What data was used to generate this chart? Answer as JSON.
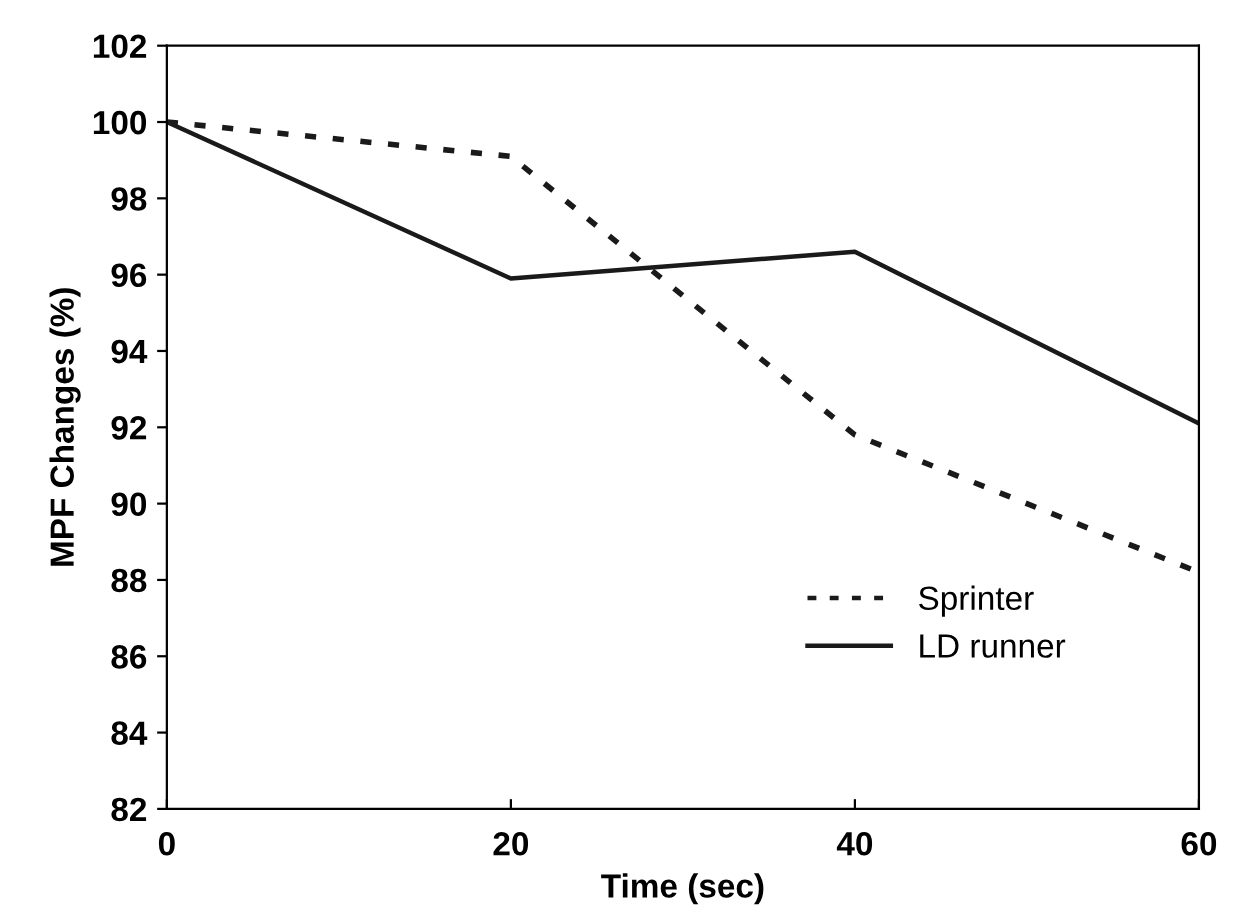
{
  "chart_data": {
    "type": "line",
    "xlabel": "Time (sec)",
    "ylabel": "MPF Changes (%)",
    "x": [
      0,
      20,
      40,
      60
    ],
    "series": [
      {
        "name": "Sprinter",
        "color": "#1a1a1a",
        "values": [
          100,
          99.1,
          91.8,
          88.2
        ],
        "line_style": "dotted"
      },
      {
        "name": "LD runner",
        "color": "#1a1a1a",
        "values": [
          100,
          95.9,
          96.6,
          92.1
        ],
        "line_style": "solid"
      }
    ],
    "xlim": [
      0,
      60
    ],
    "xticks": [
      0,
      20,
      40,
      60
    ],
    "ylim": [
      82,
      102
    ],
    "yticks": [
      82,
      84,
      86,
      88,
      90,
      92,
      94,
      96,
      98,
      100,
      102
    ],
    "grid": false,
    "legend": "bottom right",
    "marker": "none"
  }
}
